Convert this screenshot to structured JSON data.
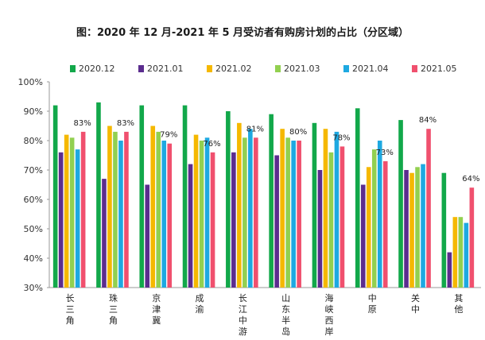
{
  "chart_data": {
    "type": "bar",
    "title": "图：2020 年 12 月-2021 年 5 月受访者有购房计划的占比（分区域）",
    "categories": [
      "长三角",
      "珠三角",
      "京津冀",
      "成渝",
      "长江中游",
      "山东半岛",
      "海峡西岸",
      "中原",
      "关中",
      "其他"
    ],
    "series": [
      {
        "name": "2020.12",
        "color": "#12a84a",
        "values": [
          92,
          93,
          92,
          92,
          90,
          89,
          86,
          91,
          87,
          69
        ]
      },
      {
        "name": "2021.01",
        "color": "#5b2d8e",
        "values": [
          76,
          67,
          65,
          72,
          76,
          75,
          70,
          65,
          70,
          42
        ]
      },
      {
        "name": "2021.02",
        "color": "#f5b800",
        "values": [
          82,
          85,
          85,
          82,
          86,
          84,
          84,
          71,
          69,
          54
        ]
      },
      {
        "name": "2021.03",
        "color": "#92d050",
        "values": [
          81,
          83,
          83,
          80,
          81,
          81,
          76,
          77,
          71,
          54
        ]
      },
      {
        "name": "2021.04",
        "color": "#1ea9e1",
        "values": [
          77,
          80,
          80,
          81,
          84,
          80,
          83,
          80,
          72,
          52
        ]
      },
      {
        "name": "2021.05",
        "color": "#f0506e",
        "values": [
          83,
          83,
          79,
          76,
          81,
          80,
          78,
          73,
          84,
          64
        ]
      }
    ],
    "data_labels": [
      "83%",
      "83%",
      "79%",
      "76%",
      "81%",
      "80%",
      "78%",
      "73%",
      "84%",
      "64%"
    ],
    "ylim": [
      30,
      100
    ],
    "yticks": [
      "30%",
      "40%",
      "50%",
      "60%",
      "70%",
      "80%",
      "90%",
      "100%"
    ],
    "ytick_values": [
      30,
      40,
      50,
      60,
      70,
      80,
      90,
      100
    ],
    "legend_position": "top",
    "grid": false
  }
}
